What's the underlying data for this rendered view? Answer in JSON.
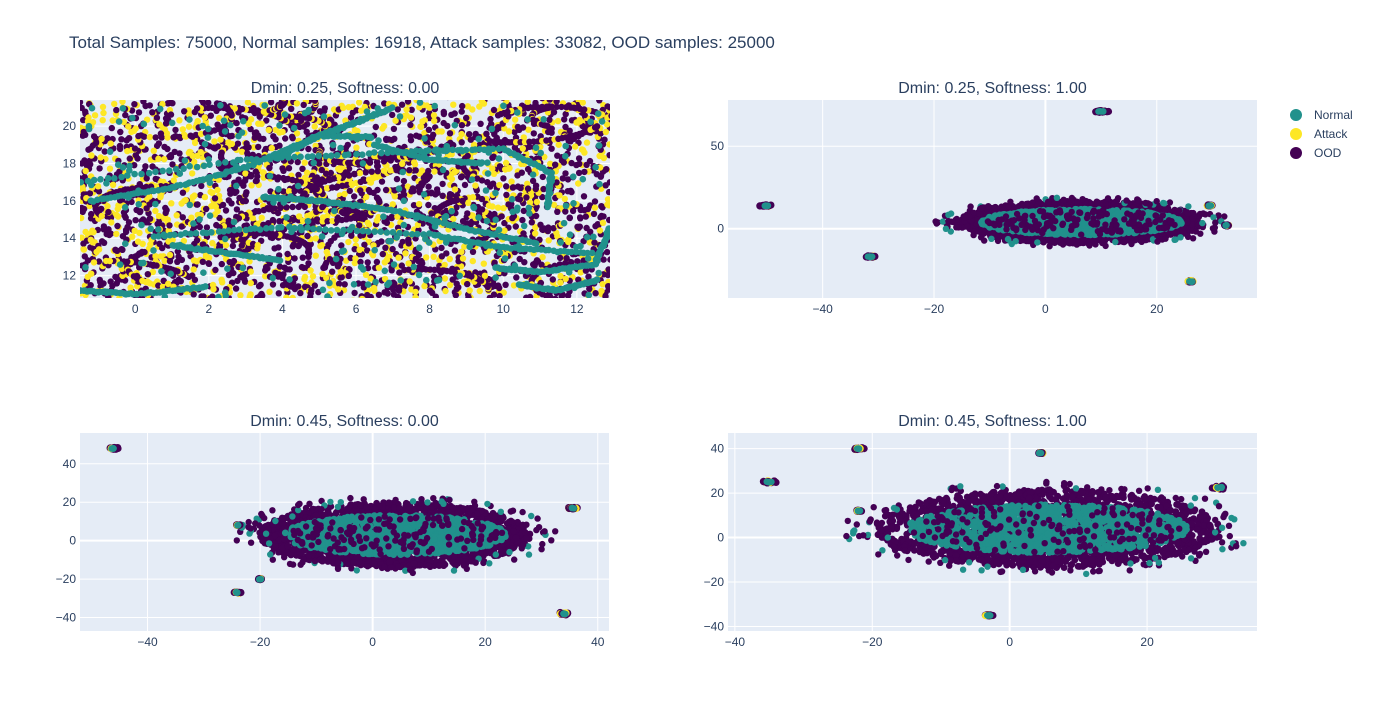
{
  "title": "Total Samples: 75000, Normal samples: 16918, Attack samples: 33082, OOD samples: 25000",
  "legend": [
    {
      "name": "Normal",
      "color": "#21918c"
    },
    {
      "name": "Attack",
      "color": "#fde725"
    },
    {
      "name": "OOD",
      "color": "#440154"
    }
  ],
  "chart_data": [
    {
      "type": "scatter",
      "title": "Dmin: 0.25, Softness: 0.00",
      "xlim": [
        -1.5,
        12.9
      ],
      "ylim": [
        10.8,
        21.4
      ],
      "xticks": [
        0,
        2,
        4,
        6,
        8,
        10,
        12
      ],
      "yticks": [
        12,
        14,
        16,
        18,
        20
      ],
      "pattern": "zoom",
      "series": [
        {
          "name": "Normal",
          "color": "#21918c"
        },
        {
          "name": "Attack",
          "color": "#fde725"
        },
        {
          "name": "OOD",
          "color": "#440154"
        }
      ]
    },
    {
      "type": "scatter",
      "title": "Dmin: 0.25, Softness: 1.00",
      "xlim": [
        -57,
        38
      ],
      "ylim": [
        -42,
        78
      ],
      "xticks": [
        -40,
        -20,
        0,
        20
      ],
      "yticks": [
        0,
        50
      ],
      "pattern": "cloud",
      "cloud": {
        "cx": 6.5,
        "cy": 4,
        "rx": 22,
        "ry": 16
      },
      "clusters": [
        {
          "x": 10,
          "y": 71,
          "r": 2
        },
        {
          "x": -50,
          "y": 14,
          "r": 2
        },
        {
          "x": -31.5,
          "y": -17,
          "r": 1.5
        },
        {
          "x": 26,
          "y": -32,
          "r": 1.2
        },
        {
          "x": 32.5,
          "y": 2,
          "r": 0.8
        },
        {
          "x": 29.5,
          "y": 14,
          "r": 1
        }
      ],
      "series": [
        {
          "name": "Normal",
          "color": "#21918c"
        },
        {
          "name": "Attack",
          "color": "#fde725"
        },
        {
          "name": "OOD",
          "color": "#440154"
        }
      ]
    },
    {
      "type": "scatter",
      "title": "Dmin: 0.45, Softness: 0.00",
      "xlim": [
        -52,
        42
      ],
      "ylim": [
        -47,
        56
      ],
      "xticks": [
        -40,
        -20,
        0,
        20,
        40
      ],
      "yticks": [
        -40,
        -20,
        0,
        20,
        40
      ],
      "pattern": "cloud",
      "cloud": {
        "cx": 4,
        "cy": 3,
        "rx": 24,
        "ry": 21
      },
      "clusters": [
        {
          "x": -46,
          "y": 48,
          "r": 1.5
        },
        {
          "x": 35.5,
          "y": 17,
          "r": 1.2
        },
        {
          "x": 34,
          "y": -38,
          "r": 1.5
        },
        {
          "x": -24,
          "y": -27,
          "r": 1
        },
        {
          "x": -20,
          "y": -20,
          "r": 0.7
        },
        {
          "x": -24,
          "y": 8,
          "r": 0.6
        }
      ],
      "series": [
        {
          "name": "Normal",
          "color": "#21918c"
        },
        {
          "name": "Attack",
          "color": "#fde725"
        },
        {
          "name": "OOD",
          "color": "#440154"
        }
      ]
    },
    {
      "type": "scatter",
      "title": "Dmin: 0.45, Softness: 1.00",
      "xlim": [
        -41,
        36
      ],
      "ylim": [
        -42,
        47
      ],
      "xticks": [
        -40,
        -20,
        0,
        20
      ],
      "yticks": [
        -40,
        -20,
        0,
        20,
        40
      ],
      "pattern": "cloud",
      "cloud": {
        "cx": 5.5,
        "cy": 4,
        "rx": 25,
        "ry": 22
      },
      "clusters": [
        {
          "x": -22,
          "y": 40,
          "r": 1
        },
        {
          "x": -35,
          "y": 25,
          "r": 1.4
        },
        {
          "x": 30.5,
          "y": 22.5,
          "r": 1.5
        },
        {
          "x": -3,
          "y": -35,
          "r": 1
        },
        {
          "x": 4.5,
          "y": 38,
          "r": 0.6
        },
        {
          "x": -22,
          "y": 12,
          "r": 0.8
        }
      ],
      "series": [
        {
          "name": "Normal",
          "color": "#21918c"
        },
        {
          "name": "Attack",
          "color": "#fde725"
        },
        {
          "name": "OOD",
          "color": "#440154"
        }
      ]
    }
  ]
}
